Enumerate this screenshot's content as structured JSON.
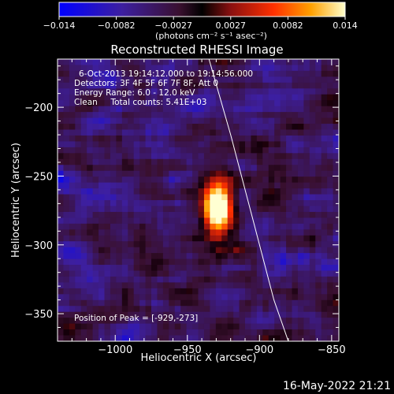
{
  "colorbar": {
    "ticks": [
      "-0.014",
      "-0.0082",
      "-0.0027",
      "0.0027",
      "0.0082",
      "0.014"
    ],
    "unit_label": "(photons cm⁻² s⁻¹ asec⁻²)",
    "min": -0.014,
    "max": 0.014
  },
  "chart_data": {
    "type": "heatmap",
    "title": "Reconstructed RHESSI Image",
    "xlabel": "Heliocentric X (arcsec)",
    "ylabel": "Heliocentric Y (arcsec)",
    "xlim": [
      -1040,
      -845
    ],
    "ylim": [
      -370,
      -165
    ],
    "x_ticks": [
      -1000,
      -950,
      -900,
      -850
    ],
    "y_ticks": [
      -200,
      -250,
      -300,
      -350
    ],
    "x_tick_labels": [
      "−1000",
      "−950",
      "−900",
      "−850"
    ],
    "y_tick_labels": [
      "−200",
      "−250",
      "−300",
      "−350"
    ],
    "peak": {
      "x": -929,
      "y": -273
    },
    "limb_curve": [
      [
        -935,
        -165
      ],
      [
        -920,
        -220
      ],
      [
        -905,
        -280
      ],
      [
        -890,
        -340
      ],
      [
        -880,
        -370
      ]
    ],
    "annotations": {
      "time_range": "6-Oct-2013 19:14:12.000 to 19:14:56.000",
      "detectors": "Detectors: 3F 4F 5F 6F 7F 8F, Att 0",
      "energy": "Energy Range: 6.0 - 12.0 keV",
      "clean": "Clean     Total counts: 5.41E+03",
      "peak_position": "Position of Peak = [-929,-273]"
    }
  },
  "footer_date": "16-May-2022 21:21"
}
